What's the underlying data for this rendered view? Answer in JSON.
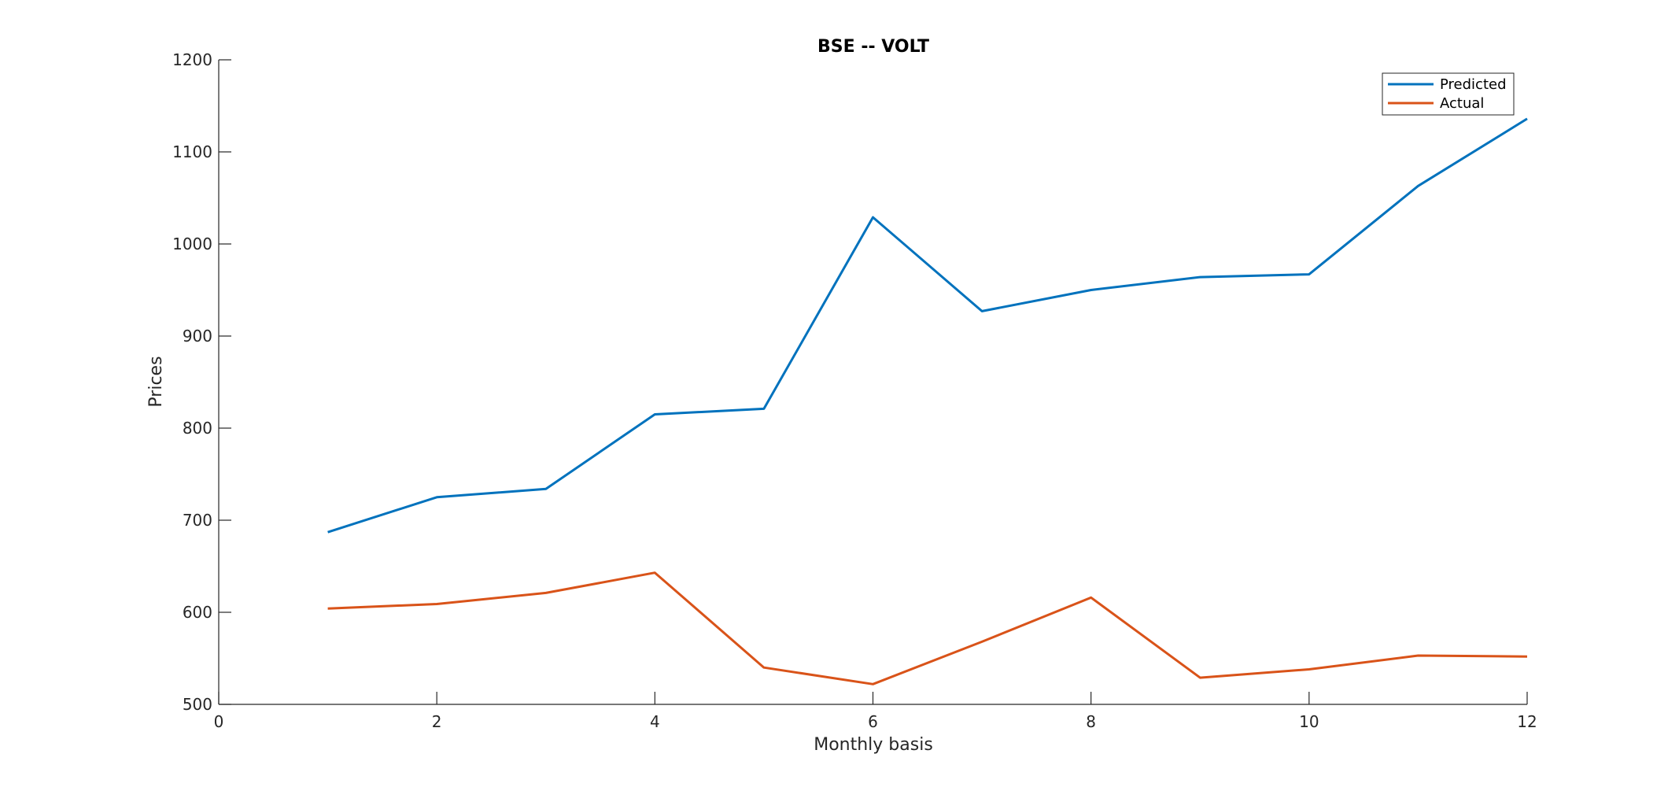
{
  "chart_data": {
    "type": "line",
    "title": "BSE -- VOLT",
    "xlabel": "Monthly basis",
    "ylabel": "Prices",
    "xlim": [
      0,
      12
    ],
    "ylim": [
      500,
      1200
    ],
    "xticks": [
      0,
      2,
      4,
      6,
      8,
      10,
      12
    ],
    "yticks": [
      500,
      600,
      700,
      800,
      900,
      1000,
      1100,
      1200
    ],
    "grid": false,
    "legend_position": "top-right",
    "x": [
      1,
      2,
      3,
      4,
      5,
      6,
      7,
      8,
      9,
      10,
      11,
      12
    ],
    "series": [
      {
        "name": "Predicted",
        "color": "#0072BD",
        "values": [
          687,
          725,
          734,
          815,
          821,
          1029,
          927,
          950,
          964,
          967,
          1063,
          1136
        ]
      },
      {
        "name": "Actual",
        "color": "#D95319",
        "values": [
          604,
          609,
          621,
          643,
          540,
          522,
          568,
          616,
          529,
          538,
          553,
          552
        ]
      }
    ]
  }
}
